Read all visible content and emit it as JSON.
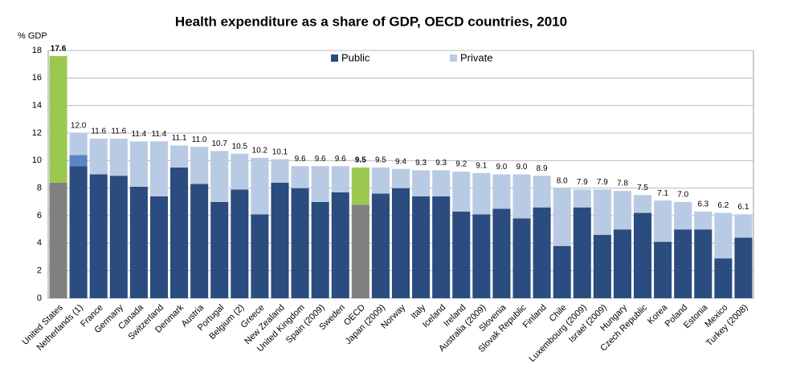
{
  "chart_data": {
    "type": "stacked-bar",
    "title": "Health expenditure as a share of GDP, OECD countries, 2010",
    "y_label": "% GDP",
    "categories": [
      "United States",
      "Netherlands (1)",
      "France",
      "Germany",
      "Canada",
      "Switzerland",
      "Denmark",
      "Austria",
      "Portugal",
      "Belgium (2)",
      "Greece",
      "New Zealand",
      "United Kingdom",
      "Spain (2009)",
      "Sweden",
      "OECD",
      "Japan (2009)",
      "Norway",
      "Italy",
      "Iceland",
      "Ireland",
      "Australia (2009)",
      "Slovenia",
      "Slovak Republic",
      "Finland",
      "Chile",
      "Luxembourg (2009)",
      "Israel (2009)",
      "Hungary",
      "Czech Republic",
      "Korea",
      "Poland",
      "Estonia",
      "Mexico",
      "Turkey (2008)"
    ],
    "series": [
      {
        "name": "Public",
        "color": "#2b4c7e",
        "colors": [
          "#808080",
          null,
          null,
          null,
          null,
          null,
          null,
          null,
          null,
          null,
          null,
          null,
          null,
          null,
          null,
          "#808080",
          null,
          null,
          null,
          null,
          null,
          null,
          null,
          null,
          null,
          null,
          null,
          null,
          null,
          null,
          null,
          null,
          null,
          null,
          null
        ],
        "values": [
          8.4,
          9.6,
          9.0,
          8.9,
          8.1,
          7.4,
          9.5,
          8.3,
          7.0,
          7.9,
          6.1,
          8.4,
          8.0,
          7.0,
          7.7,
          6.8,
          7.6,
          8.0,
          7.4,
          7.4,
          6.3,
          6.1,
          6.5,
          5.8,
          6.6,
          3.8,
          6.6,
          4.6,
          5.0,
          6.2,
          4.1,
          5.0,
          5.0,
          2.9,
          4.4
        ]
      },
      {
        "color": "#5b84c4",
        "values": [
          null,
          0.8,
          null,
          null,
          null,
          null,
          null,
          null,
          null,
          null,
          null,
          null,
          null,
          null,
          null,
          null,
          null,
          null,
          null,
          null,
          null,
          null,
          null,
          null,
          null,
          null,
          null,
          null,
          null,
          null,
          null,
          null,
          null,
          null,
          null
        ]
      },
      {
        "name": "Private",
        "color": "#b9cbe4",
        "colors": [
          "#9bc84f",
          null,
          null,
          null,
          null,
          null,
          null,
          null,
          null,
          null,
          null,
          null,
          null,
          null,
          null,
          "#9bc84f",
          null,
          null,
          null,
          null,
          null,
          null,
          null,
          null,
          null,
          null,
          null,
          null,
          null,
          null,
          null,
          null,
          null,
          null,
          null
        ],
        "values": [
          9.2,
          1.6,
          2.6,
          2.7,
          3.3,
          4.0,
          1.6,
          2.7,
          3.7,
          2.6,
          4.1,
          1.7,
          1.6,
          2.6,
          1.9,
          2.7,
          1.9,
          1.4,
          1.9,
          1.9,
          2.9,
          3.0,
          2.5,
          3.2,
          2.3,
          4.2,
          1.3,
          3.3,
          2.8,
          1.3,
          3.0,
          2.0,
          1.3,
          3.3,
          1.7
        ]
      }
    ],
    "value_labels": [
      "17.6",
      "12.0",
      "11.6",
      "11.6",
      "11.4",
      "11.4",
      "11.1",
      "11.0",
      "10.7",
      "10.5",
      "10.2",
      "10.1",
      "9.6",
      "9.6",
      "9.6",
      "9.5",
      "9.5",
      "9.4",
      "9.3",
      "9.3",
      "9.2",
      "9.1",
      "9.0",
      "9.0",
      "8.9",
      "8.0",
      "7.9",
      "7.9",
      "7.8",
      "7.5",
      "7.1",
      "7.0",
      "6.3",
      "6.2",
      "6.1"
    ],
    "ylim": [
      0,
      18
    ],
    "yticks": [
      0,
      2,
      4,
      6,
      8,
      10,
      12,
      14,
      16,
      18
    ],
    "grid": true,
    "legend": "top"
  }
}
